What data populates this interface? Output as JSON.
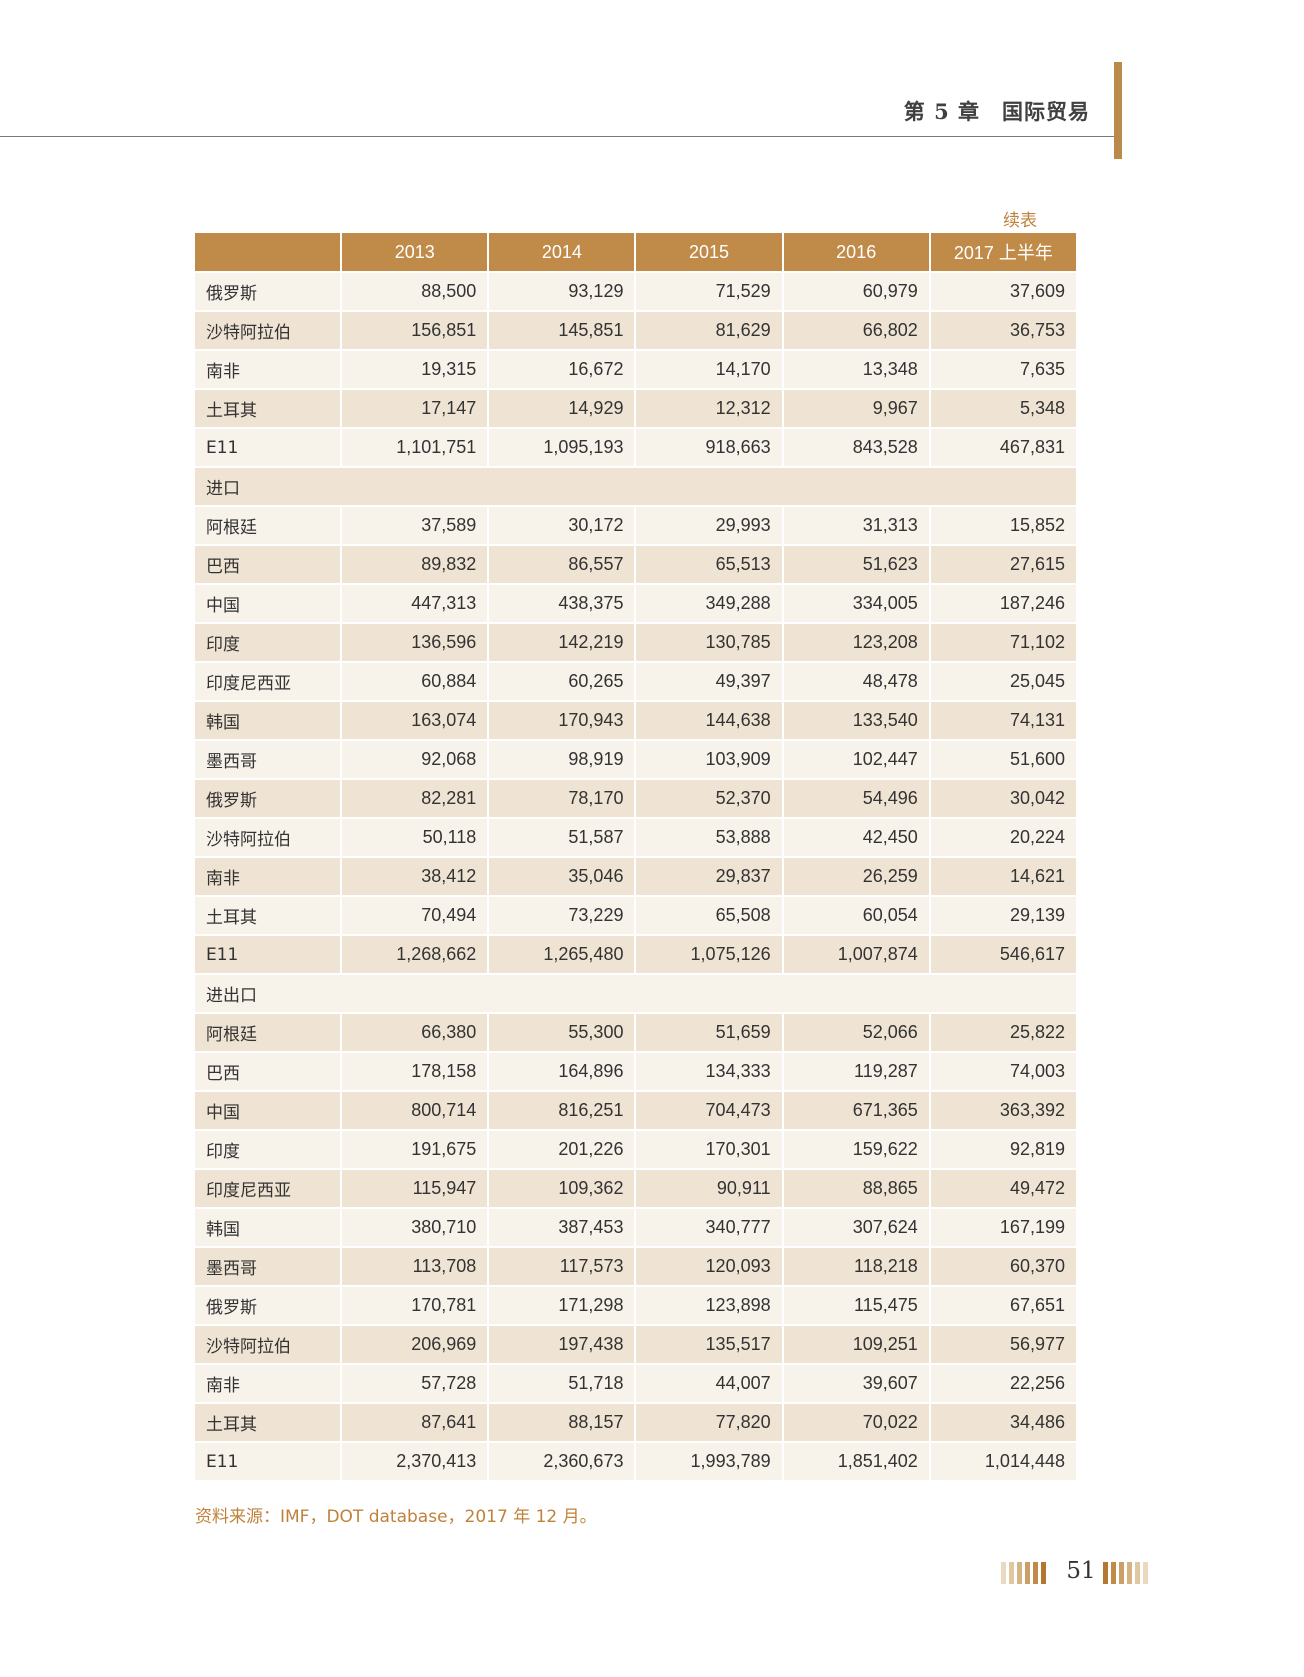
{
  "header": {
    "chapter": "第 5 章",
    "title": "国际贸易"
  },
  "table": {
    "continued_label": "续表",
    "columns": [
      "",
      "2013",
      "2014",
      "2015",
      "2016",
      "2017 上半年"
    ],
    "rows": [
      [
        "俄罗斯",
        "88,500",
        "93,129",
        "71,529",
        "60,979",
        "37,609"
      ],
      [
        "沙特阿拉伯",
        "156,851",
        "145,851",
        "81,629",
        "66,802",
        "36,753"
      ],
      [
        "南非",
        "19,315",
        "16,672",
        "14,170",
        "13,348",
        "7,635"
      ],
      [
        "土耳其",
        "17,147",
        "14,929",
        "12,312",
        "9,967",
        "5,348"
      ],
      [
        "E11",
        "1,101,751",
        "1,095,193",
        "918,663",
        "843,528",
        "467,831"
      ],
      [
        "进口"
      ],
      [
        "阿根廷",
        "37,589",
        "30,172",
        "29,993",
        "31,313",
        "15,852"
      ],
      [
        "巴西",
        "89,832",
        "86,557",
        "65,513",
        "51,623",
        "27,615"
      ],
      [
        "中国",
        "447,313",
        "438,375",
        "349,288",
        "334,005",
        "187,246"
      ],
      [
        "印度",
        "136,596",
        "142,219",
        "130,785",
        "123,208",
        "71,102"
      ],
      [
        "印度尼西亚",
        "60,884",
        "60,265",
        "49,397",
        "48,478",
        "25,045"
      ],
      [
        "韩国",
        "163,074",
        "170,943",
        "144,638",
        "133,540",
        "74,131"
      ],
      [
        "墨西哥",
        "92,068",
        "98,919",
        "103,909",
        "102,447",
        "51,600"
      ],
      [
        "俄罗斯",
        "82,281",
        "78,170",
        "52,370",
        "54,496",
        "30,042"
      ],
      [
        "沙特阿拉伯",
        "50,118",
        "51,587",
        "53,888",
        "42,450",
        "20,224"
      ],
      [
        "南非",
        "38,412",
        "35,046",
        "29,837",
        "26,259",
        "14,621"
      ],
      [
        "土耳其",
        "70,494",
        "73,229",
        "65,508",
        "60,054",
        "29,139"
      ],
      [
        "E11",
        "1,268,662",
        "1,265,480",
        "1,075,126",
        "1,007,874",
        "546,617"
      ],
      [
        "进出口"
      ],
      [
        "阿根廷",
        "66,380",
        "55,300",
        "51,659",
        "52,066",
        "25,822"
      ],
      [
        "巴西",
        "178,158",
        "164,896",
        "134,333",
        "119,287",
        "74,003"
      ],
      [
        "中国",
        "800,714",
        "816,251",
        "704,473",
        "671,365",
        "363,392"
      ],
      [
        "印度",
        "191,675",
        "201,226",
        "170,301",
        "159,622",
        "92,819"
      ],
      [
        "印度尼西亚",
        "115,947",
        "109,362",
        "90,911",
        "88,865",
        "49,472"
      ],
      [
        "韩国",
        "380,710",
        "387,453",
        "340,777",
        "307,624",
        "167,199"
      ],
      [
        "墨西哥",
        "113,708",
        "117,573",
        "120,093",
        "118,218",
        "60,370"
      ],
      [
        "俄罗斯",
        "170,781",
        "171,298",
        "123,898",
        "115,475",
        "67,651"
      ],
      [
        "沙特阿拉伯",
        "206,969",
        "197,438",
        "135,517",
        "109,251",
        "56,977"
      ],
      [
        "南非",
        "57,728",
        "51,718",
        "44,007",
        "39,607",
        "22,256"
      ],
      [
        "土耳其",
        "87,641",
        "88,157",
        "77,820",
        "70,022",
        "34,486"
      ],
      [
        "E11",
        "2,370,413",
        "2,360,673",
        "1,993,789",
        "1,851,402",
        "1,014,448"
      ]
    ],
    "source": "资料来源：IMF，DOT database，2017 年 12 月。"
  },
  "footer": {
    "page_number": "51"
  },
  "colors": {
    "accent": "#c08a48",
    "row_light": "#f7f2ea",
    "row_dark": "#efe4d3",
    "source_text": "#c0823a"
  }
}
